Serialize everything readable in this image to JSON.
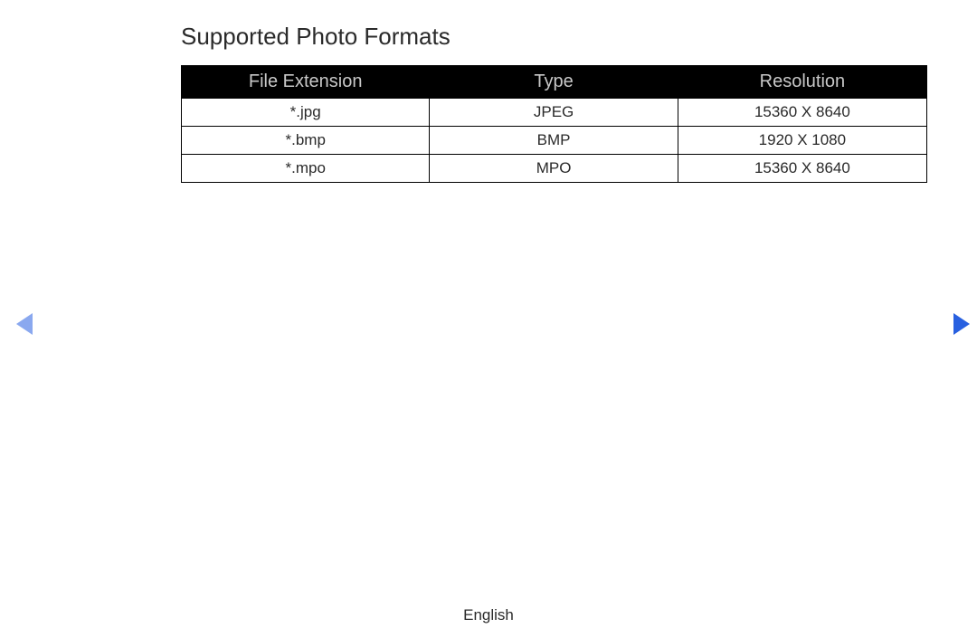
{
  "title": "Supported Photo Formats",
  "table": {
    "headers": {
      "extension": "File Extension",
      "type": "Type",
      "resolution": "Resolution"
    },
    "rows": [
      {
        "extension": "*.jpg",
        "type": "JPEG",
        "resolution": "15360 X 8640"
      },
      {
        "extension": "*.bmp",
        "type": "BMP",
        "resolution": "1920 X 1080"
      },
      {
        "extension": "*.mpo",
        "type": "MPO",
        "resolution": "15360 X 8640"
      }
    ]
  },
  "footer": "English",
  "colors": {
    "header_bg": "#000000",
    "header_text": "#c8c8c8",
    "body_text": "#2a2a2a",
    "border": "#000000",
    "nav_left": "#8aa8ef",
    "nav_right": "#2860e0"
  }
}
